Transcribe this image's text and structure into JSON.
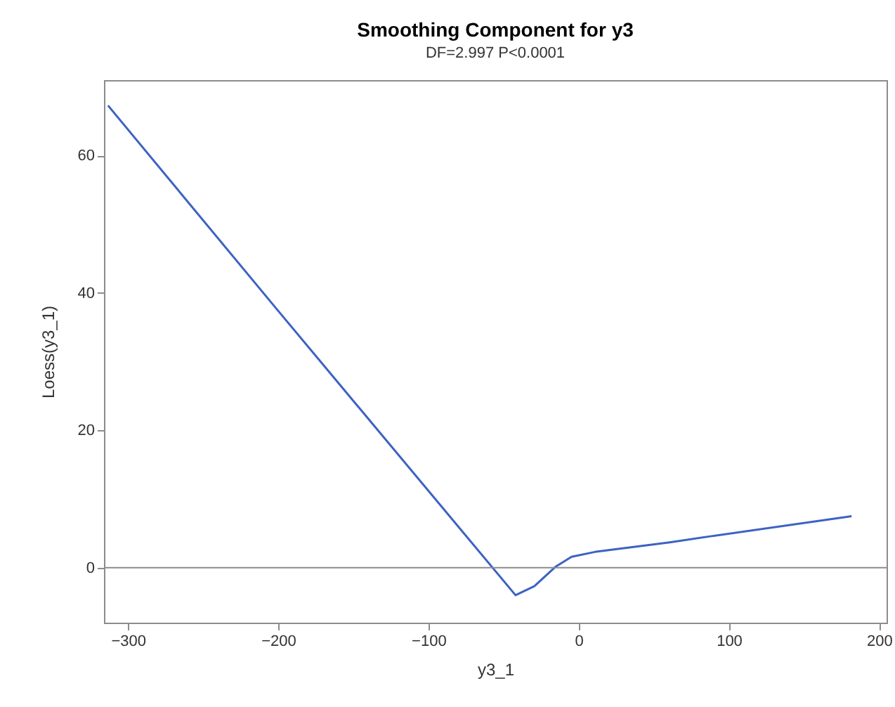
{
  "chart_data": {
    "type": "line",
    "title": "Smoothing Component for y3",
    "subtitle": "DF=2.997   P<0.0001",
    "xlabel": "y3_1",
    "ylabel": "Loess(y3_1)",
    "series": [
      {
        "color": "#3d62c4",
        "x": [
          -313.3,
          -200,
          -42,
          -29.5,
          -15.6,
          -4.7,
          10.8,
          60.6,
          88.5,
          181.7
        ],
        "values": [
          67.3,
          37.4,
          -4.0,
          -2.7,
          0.1,
          1.6,
          2.3,
          3.7,
          4.6,
          7.5
        ]
      }
    ],
    "xlim": [
      -316,
      205
    ],
    "ylim": [
      -8,
      71
    ],
    "xticks": [
      -300,
      -200,
      -100,
      0,
      100,
      200
    ],
    "yticks": [
      0,
      20,
      40,
      60
    ],
    "ref_lines": [
      {
        "axis": "y",
        "value": 0,
        "color": "#8c8c8c"
      }
    ],
    "grid": false,
    "marker": "none"
  }
}
